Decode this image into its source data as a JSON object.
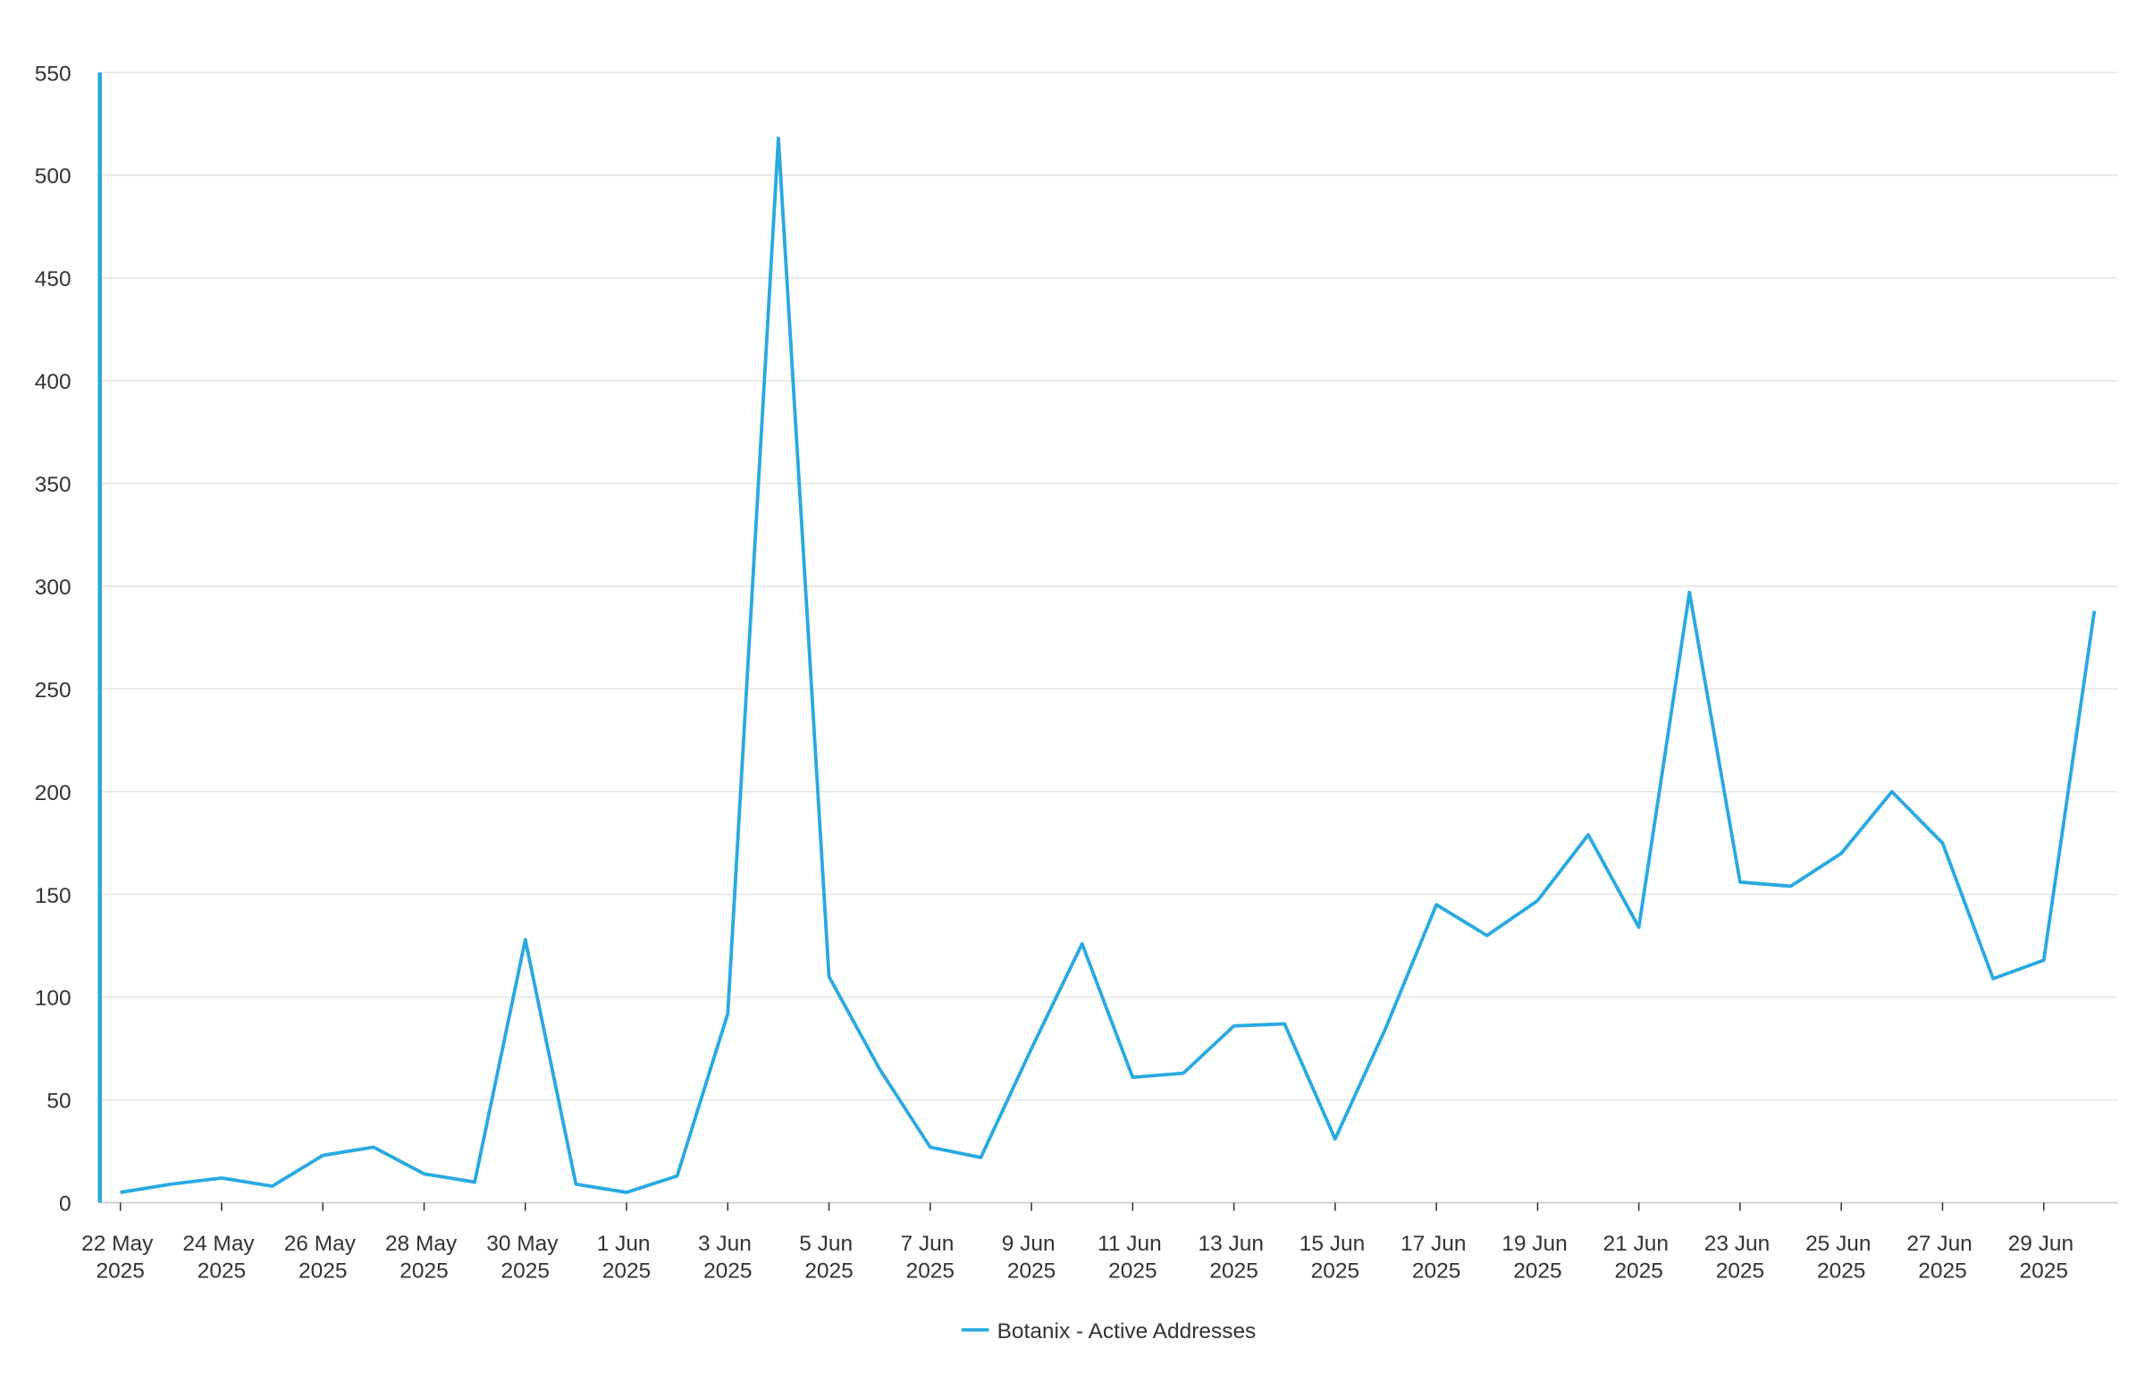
{
  "chart_data": {
    "type": "line",
    "categories": [
      "22 May 2025",
      null,
      "24 May 2025",
      null,
      "26 May 2025",
      null,
      "28 May 2025",
      null,
      "30 May 2025",
      null,
      "1 Jun 2025",
      null,
      "3 Jun 2025",
      null,
      "5 Jun 2025",
      null,
      "7 Jun 2025",
      null,
      "9 Jun 2025",
      null,
      "11 Jun 2025",
      null,
      "13 Jun 2025",
      null,
      "15 Jun 2025",
      null,
      "17 Jun 2025",
      null,
      "19 Jun 2025",
      null,
      "21 Jun 2025",
      null,
      "23 Jun 2025",
      null,
      "25 Jun 2025",
      null,
      "27 Jun 2025",
      null,
      "29 Jun 2025",
      null
    ],
    "series": [
      {
        "name": "Botanix - Active Addresses",
        "color": "#29a9e0",
        "values": [
          5,
          9,
          12,
          8,
          23,
          27,
          14,
          10,
          128,
          9,
          5,
          13,
          92,
          518,
          110,
          65,
          27,
          22,
          75,
          126,
          61,
          63,
          86,
          87,
          31,
          85,
          145,
          130,
          147,
          179,
          134,
          297,
          156,
          154,
          170,
          200,
          175,
          109,
          118,
          288
        ]
      }
    ],
    "ylim": [
      0,
      550
    ],
    "yticks": [
      0,
      50,
      100,
      150,
      200,
      250,
      300,
      350,
      400,
      450,
      500,
      550
    ],
    "grid": true,
    "legend": "bottom"
  }
}
